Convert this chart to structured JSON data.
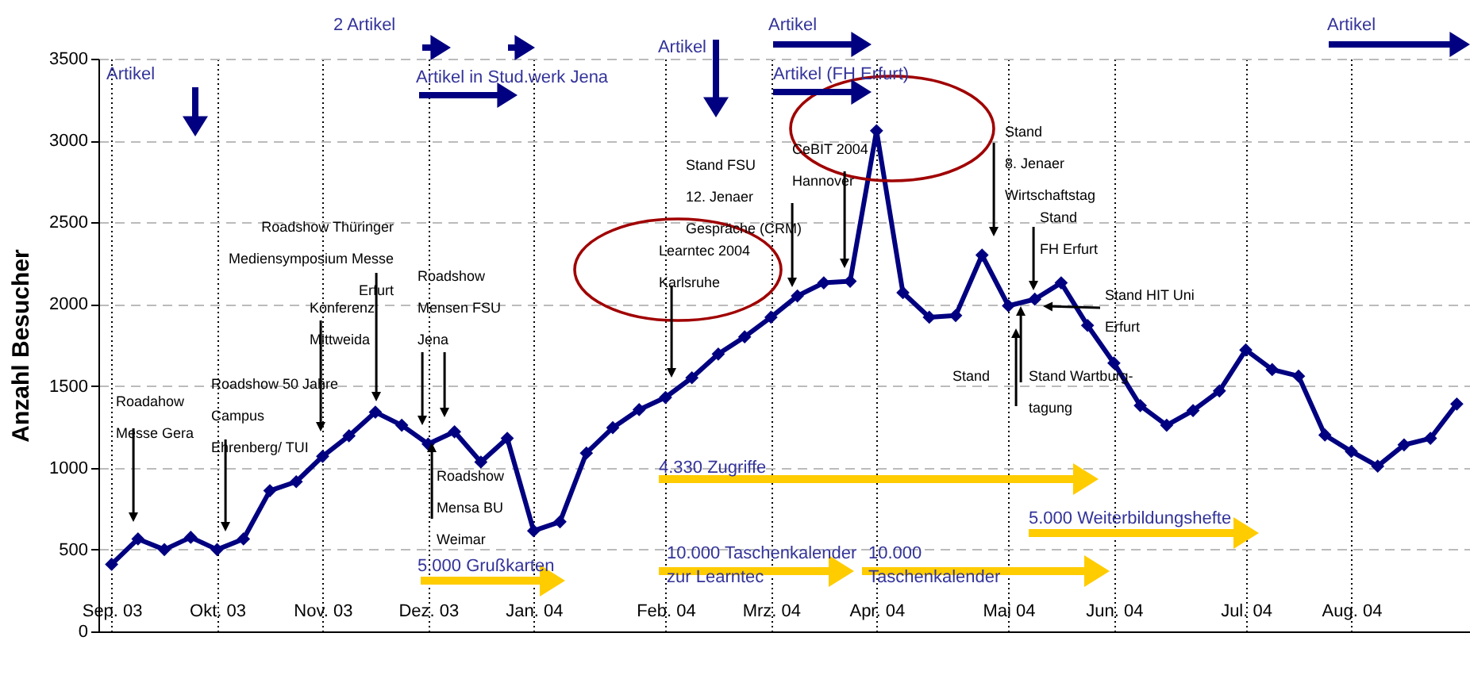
{
  "chart_data": {
    "type": "line",
    "ylabel": "Anzahl Besucher",
    "categories": [
      "Sep. 03",
      null,
      null,
      null,
      "Okt. 03",
      null,
      null,
      null,
      "Nov. 03",
      null,
      null,
      null,
      "Dez. 03",
      null,
      null,
      null,
      "Jan. 04",
      null,
      null,
      null,
      null,
      "Feb. 04",
      null,
      null,
      null,
      "Mrz. 04",
      null,
      null,
      null,
      "Apr. 04",
      null,
      null,
      null,
      null,
      "Mai 04",
      null,
      null,
      null,
      "Jun. 04",
      null,
      null,
      null,
      null,
      "Jul. 04",
      null,
      null,
      null,
      "Aug. 04",
      null,
      null,
      null,
      null
    ],
    "values": [
      410,
      565,
      500,
      575,
      500,
      565,
      860,
      915,
      1070,
      1195,
      1340,
      1260,
      1145,
      1220,
      1035,
      1180,
      615,
      670,
      1090,
      1245,
      1355,
      1430,
      1550,
      1695,
      1800,
      1920,
      2050,
      2130,
      2140,
      3060,
      2070,
      1920,
      1930,
      2300,
      1990,
      2030,
      2130,
      1870,
      1640,
      1380,
      1260,
      1350,
      1470,
      1720,
      1600,
      1560,
      1200,
      1100,
      1010,
      1140,
      1180,
      1390
    ],
    "color": "#000080",
    "marker": "diamond",
    "ylim": [
      0,
      3500
    ],
    "yticks": [
      0,
      500,
      1000,
      1500,
      2000,
      2500,
      3000,
      3500
    ],
    "grid": true,
    "annotations": [
      "Artikel",
      "2 Artikel",
      "Artikel",
      "Artikel in Stud.werk Jena",
      "Artikel",
      "Artikel (FH Erfurt)",
      "Artikel",
      "Roadahow\nMesse Gera",
      "Roadshow 50 Jahre\nCampus\nEhrenberg/ TUI",
      "Konferenz\nMittweida",
      "Roadshow Thüringer\nMediensymposium Messe\nErfurt",
      "Roadshow\nMensen FSU\nJena",
      "Roadshow\nMensa BU\nWeimar",
      "Learntec 2004\nKarlsruhe",
      "Stand FSU\n12. Jenaer\nGespräche (CRM)",
      "CeBIT 2004\nHannover",
      "Stand\n8. Jenaer\nWirtschaftstag",
      "Stand\nFH Erfurt",
      "Stand HIT Uni\nErfurt",
      "Stand",
      "Stand Wartburg-\ntagung",
      "4.330 Zugriffe",
      "5.000 Grußkarten",
      "10.000 Taschenkalender\nzur Learntec",
      "10.000\nTaschenkalender",
      "5.000 Weiterbildungshefte"
    ]
  }
}
